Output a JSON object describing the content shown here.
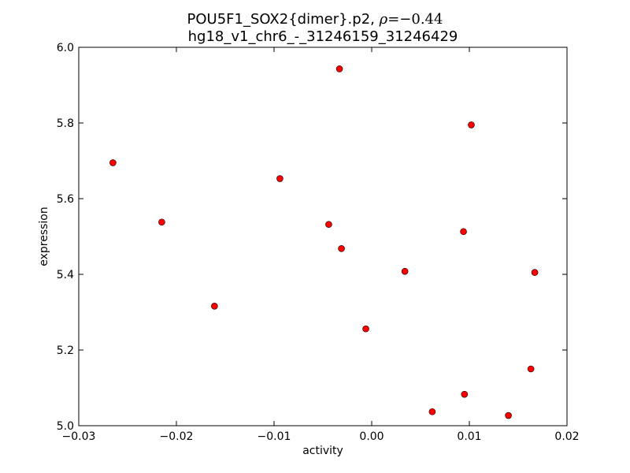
{
  "chart_data": {
    "type": "scatter",
    "title_line1": "POU5F1_SOX2{dimer}.p2, ",
    "title_rho_symbol": "ρ",
    "title_rho_value": "=−0.44",
    "title_line2": "hg18_v1_chr6_-_31246159_31246429",
    "xlabel": "activity",
    "ylabel": "expression",
    "xlim": [
      -0.03,
      0.02
    ],
    "ylim": [
      5.0,
      6.0
    ],
    "xticks": [
      {
        "value": -0.03,
        "label": "−0.03"
      },
      {
        "value": -0.02,
        "label": "−0.02"
      },
      {
        "value": -0.01,
        "label": "−0.01"
      },
      {
        "value": 0.0,
        "label": "0.00"
      },
      {
        "value": 0.01,
        "label": "0.01"
      },
      {
        "value": 0.02,
        "label": "0.02"
      }
    ],
    "yticks": [
      {
        "value": 5.0,
        "label": "5.0"
      },
      {
        "value": 5.2,
        "label": "5.2"
      },
      {
        "value": 5.4,
        "label": "5.4"
      },
      {
        "value": 5.6,
        "label": "5.6"
      },
      {
        "value": 5.8,
        "label": "5.8"
      },
      {
        "value": 6.0,
        "label": "6.0"
      }
    ],
    "grid": false,
    "marker_color": "#ff0000",
    "points": [
      {
        "x": -0.0265,
        "y": 5.695
      },
      {
        "x": -0.0215,
        "y": 5.538
      },
      {
        "x": -0.0161,
        "y": 5.316
      },
      {
        "x": -0.0094,
        "y": 5.653
      },
      {
        "x": -0.0033,
        "y": 5.943
      },
      {
        "x": -0.0044,
        "y": 5.532
      },
      {
        "x": -0.0031,
        "y": 5.468
      },
      {
        "x": -0.0006,
        "y": 5.256
      },
      {
        "x": 0.0034,
        "y": 5.408
      },
      {
        "x": 0.0062,
        "y": 5.037
      },
      {
        "x": 0.0094,
        "y": 5.513
      },
      {
        "x": 0.0095,
        "y": 5.083
      },
      {
        "x": 0.0102,
        "y": 5.795
      },
      {
        "x": 0.014,
        "y": 5.027
      },
      {
        "x": 0.0163,
        "y": 5.15
      },
      {
        "x": 0.0167,
        "y": 5.405
      }
    ]
  }
}
